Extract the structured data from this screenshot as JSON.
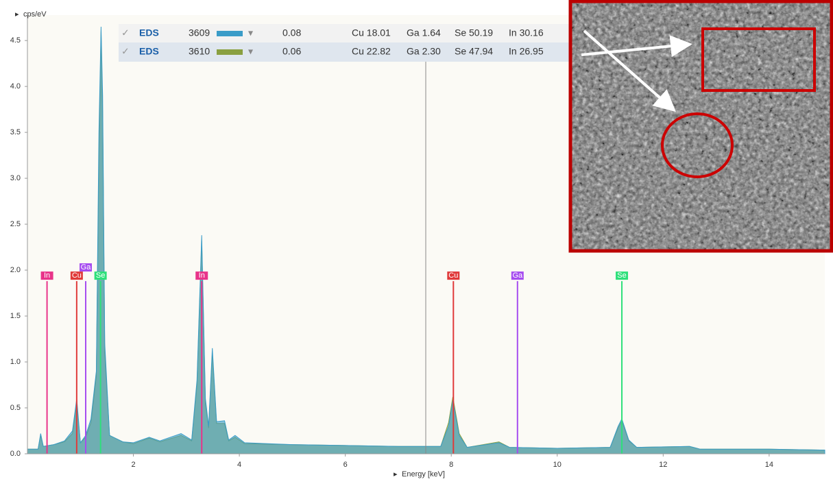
{
  "chart_data": {
    "type": "spectrum",
    "y_label": "cps/eV",
    "x_label": "Energy [keV]",
    "xlim": [
      0,
      15.05
    ],
    "ylim": [
      0,
      4.68
    ],
    "xticks": [
      2,
      4,
      6,
      8,
      10,
      12,
      14
    ],
    "yticks": [
      {
        "value": 0,
        "label": "0.0"
      },
      {
        "value": 0.5,
        "label": "0.5"
      },
      {
        "value": 1,
        "label": "1.0"
      },
      {
        "value": 1.5,
        "label": "1.5"
      },
      {
        "value": 2,
        "label": "2.0"
      },
      {
        "value": 2.5,
        "label": "2.5"
      },
      {
        "value": 3,
        "label": "3.0"
      },
      {
        "value": 3.5,
        "label": "3.5"
      },
      {
        "value": 4,
        "label": "4.0"
      },
      {
        "value": 4.5,
        "label": "4.5"
      }
    ],
    "x": [
      0,
      0.2,
      0.25,
      0.3,
      0.5,
      0.7,
      0.85,
      0.93,
      1.0,
      1.1,
      1.2,
      1.3,
      1.35,
      1.39,
      1.42,
      1.46,
      1.55,
      1.8,
      2.0,
      2.3,
      2.5,
      2.9,
      3.1,
      3.2,
      3.29,
      3.36,
      3.42,
      3.49,
      3.57,
      3.72,
      3.8,
      3.92,
      4.1,
      5,
      6,
      7,
      7.8,
      7.95,
      8.03,
      8.15,
      8.3,
      8.9,
      9.1,
      10,
      11.0,
      11.15,
      11.22,
      11.35,
      11.5,
      12.5,
      12.7,
      14,
      15.05
    ],
    "series": [
      {
        "name": "3609",
        "tag": "EDS",
        "score": "0.08",
        "composition": [
          "Cu 18.01",
          "Ga 1.64",
          "Se 50.19",
          "In 30.16"
        ],
        "color": "#3a9cc8",
        "values": [
          0.05,
          0.05,
          0.22,
          0.08,
          0.1,
          0.14,
          0.25,
          0.6,
          0.12,
          0.2,
          0.38,
          0.9,
          3.5,
          4.65,
          3.9,
          1.2,
          0.2,
          0.13,
          0.12,
          0.18,
          0.14,
          0.22,
          0.15,
          0.8,
          2.38,
          0.6,
          0.3,
          1.15,
          0.35,
          0.36,
          0.15,
          0.2,
          0.12,
          0.1,
          0.09,
          0.08,
          0.08,
          0.3,
          0.58,
          0.2,
          0.07,
          0.12,
          0.07,
          0.06,
          0.07,
          0.3,
          0.38,
          0.15,
          0.07,
          0.08,
          0.05,
          0.05,
          0.04
        ]
      },
      {
        "name": "3610",
        "tag": "EDS",
        "score": "0.06",
        "composition": [
          "Cu 22.82",
          "Ga 2.30",
          "Se 47.94",
          "In 26.95"
        ],
        "color": "#8aa040",
        "values": [
          0.05,
          0.05,
          0.2,
          0.08,
          0.1,
          0.13,
          0.22,
          0.55,
          0.12,
          0.18,
          0.34,
          0.85,
          3.2,
          4.6,
          3.7,
          1.1,
          0.2,
          0.13,
          0.11,
          0.17,
          0.13,
          0.2,
          0.14,
          0.75,
          2.32,
          0.55,
          0.28,
          1.1,
          0.33,
          0.33,
          0.14,
          0.18,
          0.11,
          0.1,
          0.09,
          0.08,
          0.08,
          0.34,
          0.62,
          0.22,
          0.07,
          0.13,
          0.07,
          0.06,
          0.07,
          0.28,
          0.36,
          0.14,
          0.07,
          0.08,
          0.05,
          0.05,
          0.04
        ]
      }
    ],
    "element_lines": [
      {
        "label": "In",
        "x": 0.37,
        "value": 1.88,
        "color": "#e8348a"
      },
      {
        "label": "Cu",
        "x": 0.93,
        "value": 1.88,
        "color": "#e03a3a"
      },
      {
        "label": "Ga",
        "x": 1.1,
        "value": 1.88,
        "color": "#a64cf0"
      },
      {
        "label": "Se",
        "x": 1.38,
        "value": 1.88,
        "color": "#2ee07a"
      },
      {
        "label": "In",
        "x": 3.29,
        "value": 1.88,
        "color": "#e8348a"
      },
      {
        "label": "Cu",
        "x": 8.04,
        "value": 1.88,
        "color": "#e03a3a"
      },
      {
        "label": "Ga",
        "x": 9.25,
        "value": 1.88,
        "color": "#a64cf0"
      },
      {
        "label": "Se",
        "x": 11.22,
        "value": 1.88,
        "color": "#2ee07a"
      }
    ]
  }
}
